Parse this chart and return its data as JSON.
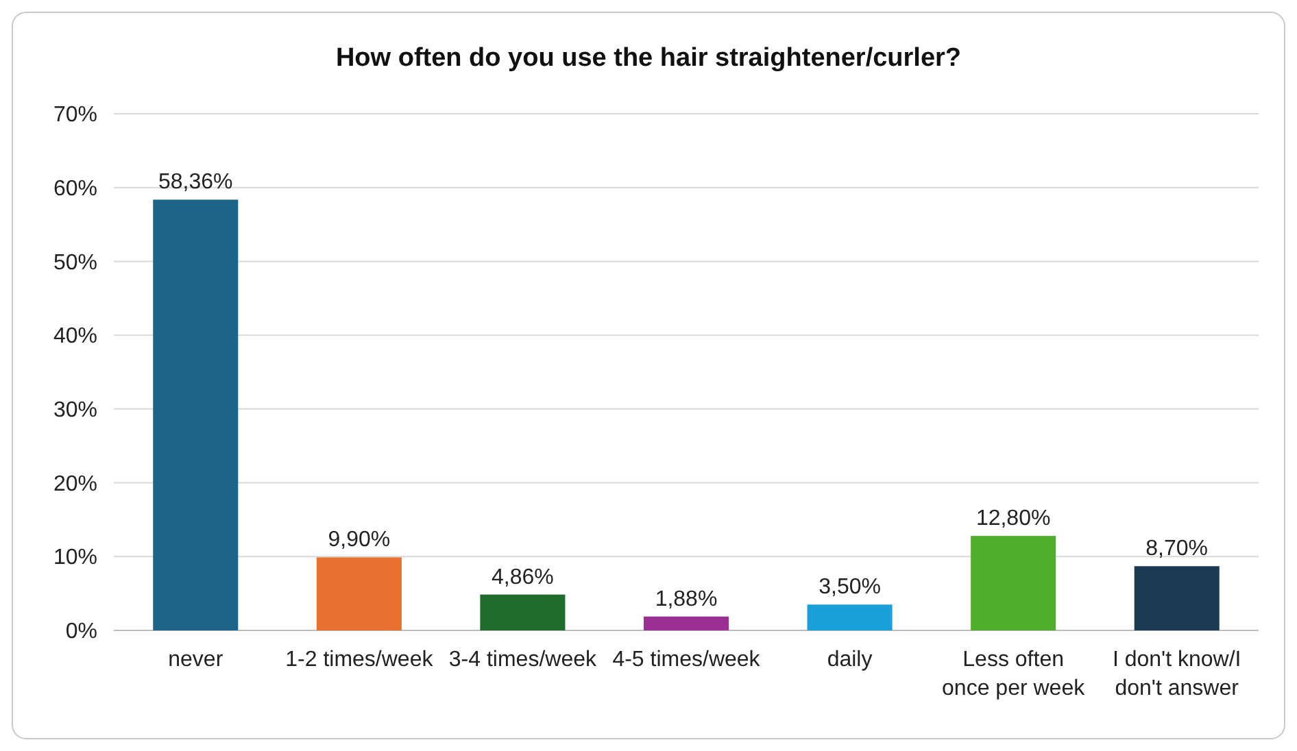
{
  "chart_data": {
    "type": "bar",
    "title": "How often do you use the hair straightener/curler?",
    "categories": [
      "never",
      "1-2 times/week",
      "3-4 times/week",
      "4-5 times/week",
      "daily",
      "Less often once per week",
      "I don't know/I don't answer"
    ],
    "values": [
      58.36,
      9.9,
      4.86,
      1.88,
      3.5,
      12.8,
      8.7
    ],
    "value_labels": [
      "58,36%",
      "9,90%",
      "4,86%",
      "1,88%",
      "3,50%",
      "12,80%",
      "8,70%"
    ],
    "colors": [
      "#1b6488",
      "#e8712f",
      "#1e6b2a",
      "#9b2f94",
      "#1aa0d8",
      "#4fae2c",
      "#1a3a52"
    ],
    "ylim": [
      0,
      70
    ],
    "yticks": [
      {
        "value": 0,
        "label": "0%"
      },
      {
        "value": 10,
        "label": "10%"
      },
      {
        "value": 20,
        "label": "20%"
      },
      {
        "value": 30,
        "label": "30%"
      },
      {
        "value": 40,
        "label": "40%"
      },
      {
        "value": 50,
        "label": "50%"
      },
      {
        "value": 60,
        "label": "60%"
      },
      {
        "value": 70,
        "label": "70%"
      }
    ],
    "grid": "y"
  }
}
